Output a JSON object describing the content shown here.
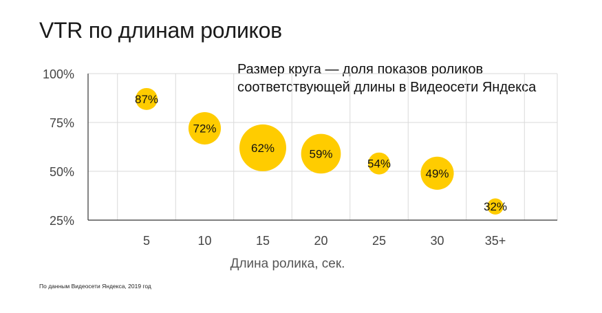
{
  "colors": {
    "bubble": "#ffcc00",
    "grid": "#d9d9d9",
    "axis": "#333333"
  },
  "chart_data": {
    "type": "scatter",
    "title": "VTR по длинам роликов",
    "subtitle_lines": [
      "Размер круга — доля показов роликов",
      "соответствующей длины в Видеосети Яндекса"
    ],
    "xlabel": "Длина ролика, сек.",
    "ylabel": "",
    "categories": [
      "5",
      "10",
      "15",
      "20",
      "25",
      "30",
      "35+"
    ],
    "values": [
      87,
      72,
      62,
      59,
      54,
      49,
      32
    ],
    "labels": [
      "87%",
      "72%",
      "62%",
      "59%",
      "54%",
      "49%",
      "32%"
    ],
    "bubble_size_rank": [
      0.22,
      0.48,
      1.0,
      0.72,
      0.22,
      0.5,
      0.12
    ],
    "y_ticks": [
      "25%",
      "50%",
      "75%",
      "100%"
    ],
    "y_tick_values": [
      25,
      50,
      75,
      100
    ],
    "ylim": [
      25,
      100
    ],
    "grid": true,
    "source": "По данным Видеосети Яндекса, 2019 год"
  }
}
